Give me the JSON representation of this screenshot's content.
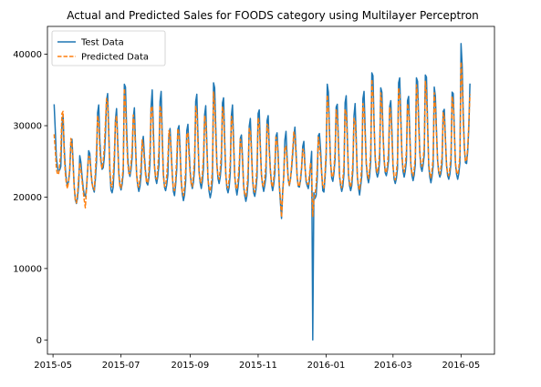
{
  "chart_data": {
    "type": "line",
    "title": "Actual and Predicted Sales for FOODS category using Multilayer Perceptron",
    "xlabel": "",
    "ylabel": "",
    "x_range": [
      "2015-04-26",
      "2016-05-31"
    ],
    "ylim": [
      -2000,
      43900
    ],
    "x_ticks": [
      {
        "date": "2015-05-01",
        "label": "2015-05"
      },
      {
        "date": "2015-07-01",
        "label": "2015-07"
      },
      {
        "date": "2015-09-01",
        "label": "2015-09"
      },
      {
        "date": "2015-11-01",
        "label": "2015-11"
      },
      {
        "date": "2016-01-01",
        "label": "2016-01"
      },
      {
        "date": "2016-03-01",
        "label": "2016-03"
      },
      {
        "date": "2016-05-01",
        "label": "2016-05"
      }
    ],
    "y_ticks": [
      {
        "value": 0,
        "label": "0"
      },
      {
        "value": 10000,
        "label": "10000"
      },
      {
        "value": 20000,
        "label": "20000"
      },
      {
        "value": 30000,
        "label": "30000"
      },
      {
        "value": 40000,
        "label": "40000"
      }
    ],
    "legend": {
      "position": "top-left"
    },
    "grid": false,
    "series": [
      {
        "name": "Test Data",
        "color": "#1f77b4",
        "dash": "solid",
        "start_date": "2015-05-02",
        "step_days": 1,
        "values": [
          33000,
          29500,
          25500,
          24200,
          23600,
          23800,
          24300,
          30000,
          31500,
          27000,
          24200,
          22300,
          21600,
          22200,
          23700,
          27300,
          28100,
          25000,
          21500,
          19700,
          19100,
          19900,
          21700,
          25800,
          24900,
          23000,
          21400,
          20300,
          20100,
          21200,
          23600,
          26500,
          26100,
          23700,
          22000,
          21200,
          20700,
          22500,
          24900,
          31800,
          32900,
          27900,
          25200,
          23900,
          24100,
          25500,
          28600,
          33500,
          34500,
          29300,
          23600,
          21000,
          20600,
          21400,
          24600,
          30800,
          32400,
          28100,
          23500,
          21700,
          21000,
          21800,
          23400,
          35800,
          35400,
          29800,
          25600,
          23600,
          22900,
          23900,
          25600,
          31100,
          32500,
          27500,
          23200,
          21600,
          20800,
          21500,
          23100,
          27500,
          28500,
          25700,
          23600,
          22000,
          21700,
          22700,
          24800,
          32700,
          35000,
          29600,
          24500,
          22600,
          21900,
          22900,
          24500,
          33400,
          34800,
          28600,
          23200,
          21400,
          20900,
          21700,
          23100,
          28700,
          29600,
          26400,
          23200,
          20800,
          20200,
          21700,
          23900,
          29500,
          30000,
          26700,
          22300,
          20400,
          19500,
          20300,
          22200,
          29300,
          30200,
          26700,
          23700,
          21900,
          21200,
          22100,
          24000,
          33400,
          34400,
          28700,
          23600,
          22000,
          21200,
          22200,
          24100,
          31500,
          32800,
          27500,
          22600,
          20800,
          19900,
          20700,
          22300,
          36000,
          35300,
          29800,
          24700,
          22600,
          21900,
          22800,
          24600,
          33200,
          33900,
          28000,
          23200,
          21200,
          20600,
          21400,
          23400,
          31400,
          32900,
          27900,
          23000,
          21300,
          20300,
          21400,
          23200,
          28200,
          28700,
          25500,
          21500,
          20200,
          19400,
          20200,
          22200,
          29900,
          31000,
          26800,
          22500,
          20600,
          20100,
          21000,
          22800,
          31700,
          32200,
          27100,
          23100,
          21600,
          20800,
          21700,
          22900,
          30700,
          31400,
          26900,
          23800,
          21800,
          20900,
          21800,
          23400,
          28500,
          29000,
          25900,
          21600,
          19200,
          17000,
          20800,
          23000,
          28000,
          29200,
          25500,
          22500,
          21600,
          22500,
          24000,
          26000,
          28500,
          29800,
          26400,
          22800,
          21500,
          21400,
          22300,
          24000,
          27100,
          27800,
          24400,
          22200,
          21600,
          21200,
          22300,
          24300,
          26400,
          0,
          20600,
          19800,
          20200,
          22600,
          28600,
          28900,
          26700,
          23400,
          20900,
          20700,
          22700,
          25500,
          35800,
          34700,
          29300,
          24900,
          22700,
          22200,
          23400,
          25300,
          32600,
          33000,
          28000,
          23000,
          21600,
          20800,
          21500,
          23300,
          33200,
          34200,
          28700,
          23200,
          21600,
          20900,
          21600,
          23800,
          31400,
          33100,
          28200,
          22800,
          21300,
          20300,
          21600,
          23000,
          33800,
          34800,
          29500,
          24700,
          22800,
          22000,
          22900,
          25000,
          37400,
          37000,
          30400,
          25500,
          23500,
          22800,
          23400,
          25100,
          35300,
          34700,
          29200,
          25300,
          23400,
          23000,
          23800,
          25100,
          32700,
          33500,
          29300,
          24400,
          22500,
          21900,
          22600,
          24000,
          36000,
          36700,
          31200,
          25800,
          23600,
          22800,
          23600,
          25100,
          33500,
          34100,
          29100,
          24500,
          23000,
          22300,
          23100,
          24600,
          36700,
          36200,
          31000,
          26300,
          24200,
          23600,
          24500,
          25900,
          37100,
          36800,
          30500,
          24400,
          22800,
          22000,
          22900,
          24400,
          35400,
          34100,
          29300,
          25100,
          23400,
          22800,
          23300,
          24700,
          32000,
          32300,
          28200,
          24500,
          23000,
          22500,
          23200,
          24800,
          34700,
          34500,
          29500,
          24700,
          23200,
          22500,
          23300,
          24800,
          41500,
          38500,
          31600,
          27000,
          24800,
          24700,
          26400,
          29800,
          35900
        ]
      },
      {
        "name": "Predicted Data",
        "color": "#ff7f0e",
        "dash": "dashed",
        "start_date": "2015-05-02",
        "step_days": 1,
        "values": [
          28800,
          26700,
          24000,
          23200,
          23200,
          24500,
          26500,
          31700,
          32000,
          26000,
          23400,
          21800,
          21200,
          22300,
          24000,
          28200,
          27400,
          24400,
          21400,
          19500,
          19200,
          20500,
          22800,
          24800,
          23800,
          22300,
          20900,
          19600,
          18500,
          21000,
          23700,
          25700,
          25600,
          23400,
          21900,
          21200,
          21000,
          23600,
          26600,
          31400,
          30500,
          26500,
          24700,
          24000,
          24900,
          27100,
          30300,
          33800,
          33200,
          28600,
          23900,
          21600,
          21400,
          23000,
          26100,
          30600,
          31400,
          27200,
          23100,
          21400,
          21300,
          22500,
          24200,
          35200,
          32700,
          28200,
          24800,
          23300,
          23300,
          24700,
          26900,
          31500,
          30400,
          26600,
          23000,
          21700,
          21400,
          22600,
          24600,
          28000,
          27100,
          24900,
          23100,
          22000,
          22100,
          23700,
          26600,
          32500,
          32700,
          28000,
          24200,
          22700,
          22500,
          24000,
          26600,
          32800,
          32100,
          27400,
          23100,
          21500,
          21500,
          23000,
          25200,
          29300,
          28700,
          25900,
          22900,
          21100,
          20900,
          22500,
          25700,
          29600,
          28800,
          25900,
          22200,
          20600,
          20200,
          21500,
          23900,
          28900,
          29000,
          25700,
          23200,
          21800,
          21500,
          23100,
          25700,
          32700,
          31900,
          27500,
          23500,
          22300,
          22000,
          23300,
          25700,
          31400,
          30600,
          26700,
          22600,
          21200,
          20800,
          21900,
          24000,
          34700,
          32900,
          28500,
          24400,
          22900,
          22500,
          23900,
          26200,
          32600,
          31900,
          27000,
          23100,
          21500,
          21300,
          22600,
          25000,
          31300,
          30600,
          26800,
          22900,
          21400,
          21100,
          22500,
          24700,
          28100,
          27500,
          24800,
          21600,
          20300,
          20100,
          21300,
          23800,
          29600,
          29300,
          26000,
          22600,
          21000,
          20700,
          22000,
          24400,
          31100,
          30400,
          26300,
          23000,
          21700,
          21500,
          22800,
          24700,
          30200,
          29900,
          26200,
          23500,
          21900,
          21400,
          22700,
          24900,
          28400,
          27900,
          25100,
          22000,
          19700,
          17200,
          20300,
          23100,
          27100,
          27100,
          24700,
          22400,
          21700,
          22500,
          24500,
          26700,
          29100,
          28500,
          25600,
          22800,
          21600,
          21500,
          22700,
          24300,
          26700,
          26400,
          24100,
          22500,
          21900,
          21800,
          23100,
          24800,
          23600,
          17300,
          19700,
          20300,
          21600,
          24100,
          28400,
          27300,
          25400,
          23300,
          21400,
          21300,
          23300,
          26600,
          34300,
          32700,
          28500,
          24800,
          23000,
          22800,
          24000,
          26500,
          32200,
          31200,
          27100,
          23000,
          21800,
          21300,
          22500,
          24600,
          32300,
          31700,
          27800,
          23400,
          21900,
          21400,
          22500,
          25000,
          31000,
          30800,
          27300,
          23000,
          21500,
          21000,
          22400,
          24500,
          33100,
          32200,
          28500,
          24700,
          23200,
          22600,
          23900,
          26400,
          36500,
          34400,
          29900,
          25700,
          23900,
          23400,
          24400,
          26400,
          34600,
          32800,
          28600,
          25200,
          23700,
          23400,
          24600,
          26500,
          32600,
          31800,
          28100,
          24400,
          22800,
          22400,
          23500,
          25200,
          35300,
          34300,
          30200,
          25900,
          23900,
          23500,
          24600,
          26400,
          33100,
          32200,
          28400,
          24600,
          23300,
          23000,
          24000,
          25800,
          35700,
          34300,
          29900,
          26200,
          24600,
          24300,
          25300,
          27100,
          36200,
          34400,
          29600,
          24700,
          23300,
          22700,
          23800,
          25600,
          34600,
          32600,
          28600,
          25100,
          23600,
          23200,
          24200,
          25900,
          31800,
          31100,
          27800,
          24400,
          23300,
          23000,
          24100,
          25900,
          34100,
          33100,
          28900,
          24800,
          23500,
          23200,
          24100,
          25800,
          38900,
          36200,
          30300,
          26700,
          25000,
          25100,
          27000,
          30400,
          34400
        ]
      }
    ]
  }
}
